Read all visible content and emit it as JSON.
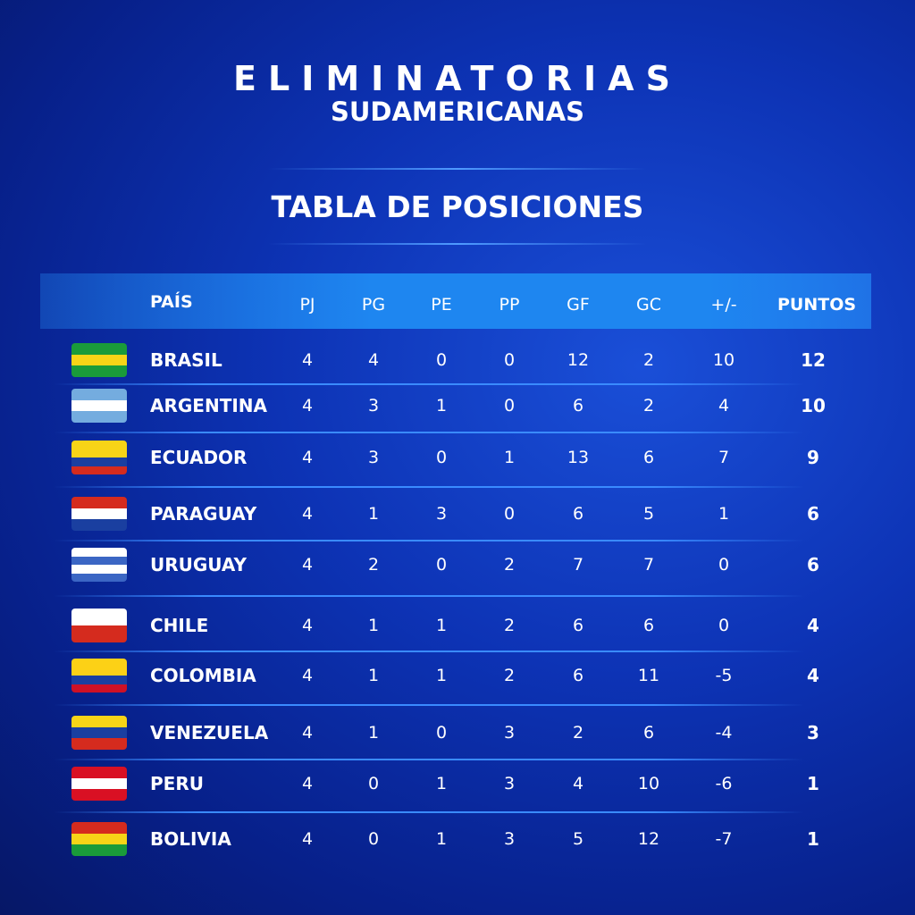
{
  "header": {
    "title": "ELIMINATORIAS",
    "subtitle": "SUDAMERICANAS",
    "table_title": "TABLA DE POSICIONES"
  },
  "table": {
    "columns": [
      "PAÍS",
      "PJ",
      "PG",
      "PE",
      "PP",
      "GF",
      "GC",
      "+/-",
      "PUNTOS"
    ],
    "rows": [
      [
        "BRASIL",
        4,
        4,
        0,
        0,
        12,
        2,
        10,
        12
      ],
      [
        "ARGENTINA",
        4,
        3,
        1,
        0,
        6,
        2,
        4,
        10
      ],
      [
        "ECUADOR",
        4,
        3,
        0,
        1,
        13,
        6,
        7,
        9
      ],
      [
        "PARAGUAY",
        4,
        1,
        3,
        0,
        6,
        5,
        1,
        6
      ],
      [
        "URUGUAY",
        4,
        2,
        0,
        2,
        7,
        7,
        0,
        6
      ],
      [
        "CHILE",
        4,
        1,
        1,
        2,
        6,
        6,
        0,
        4
      ],
      [
        "COLOMBIA",
        4,
        1,
        1,
        2,
        6,
        11,
        -5,
        4
      ],
      [
        "VENEZUELA",
        4,
        1,
        0,
        3,
        2,
        6,
        -4,
        3
      ],
      [
        "PERU",
        4,
        0,
        1,
        3,
        4,
        10,
        -6,
        1
      ],
      [
        "BOLIVIA",
        4,
        0,
        1,
        3,
        5,
        12,
        -7,
        1
      ]
    ]
  }
}
